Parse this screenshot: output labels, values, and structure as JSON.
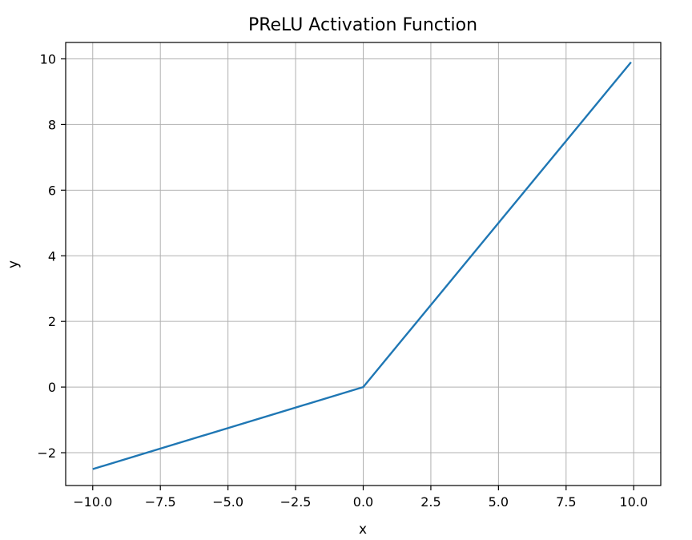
{
  "chart_data": {
    "type": "line",
    "title": "PReLU Activation Function",
    "xlabel": "x",
    "ylabel": "y",
    "xlim": [
      -11.0,
      11.0
    ],
    "ylim": [
      -3.0,
      10.5
    ],
    "x_ticks": [
      -10.0,
      -7.5,
      -5.0,
      -2.5,
      0.0,
      2.5,
      5.0,
      7.5,
      10.0
    ],
    "x_tick_labels": [
      "−10.0",
      "−7.5",
      "−5.0",
      "−2.5",
      "0.0",
      "2.5",
      "5.0",
      "7.5",
      "10.0"
    ],
    "y_ticks": [
      -2,
      0,
      2,
      4,
      6,
      8,
      10
    ],
    "y_tick_labels": [
      "−2",
      "0",
      "2",
      "4",
      "6",
      "8",
      "10"
    ],
    "grid": true,
    "series": [
      {
        "color": "#1f77b4",
        "x": [
          -10.0,
          0.0,
          9.9
        ],
        "y": [
          -2.5,
          0.0,
          9.9
        ]
      }
    ]
  }
}
